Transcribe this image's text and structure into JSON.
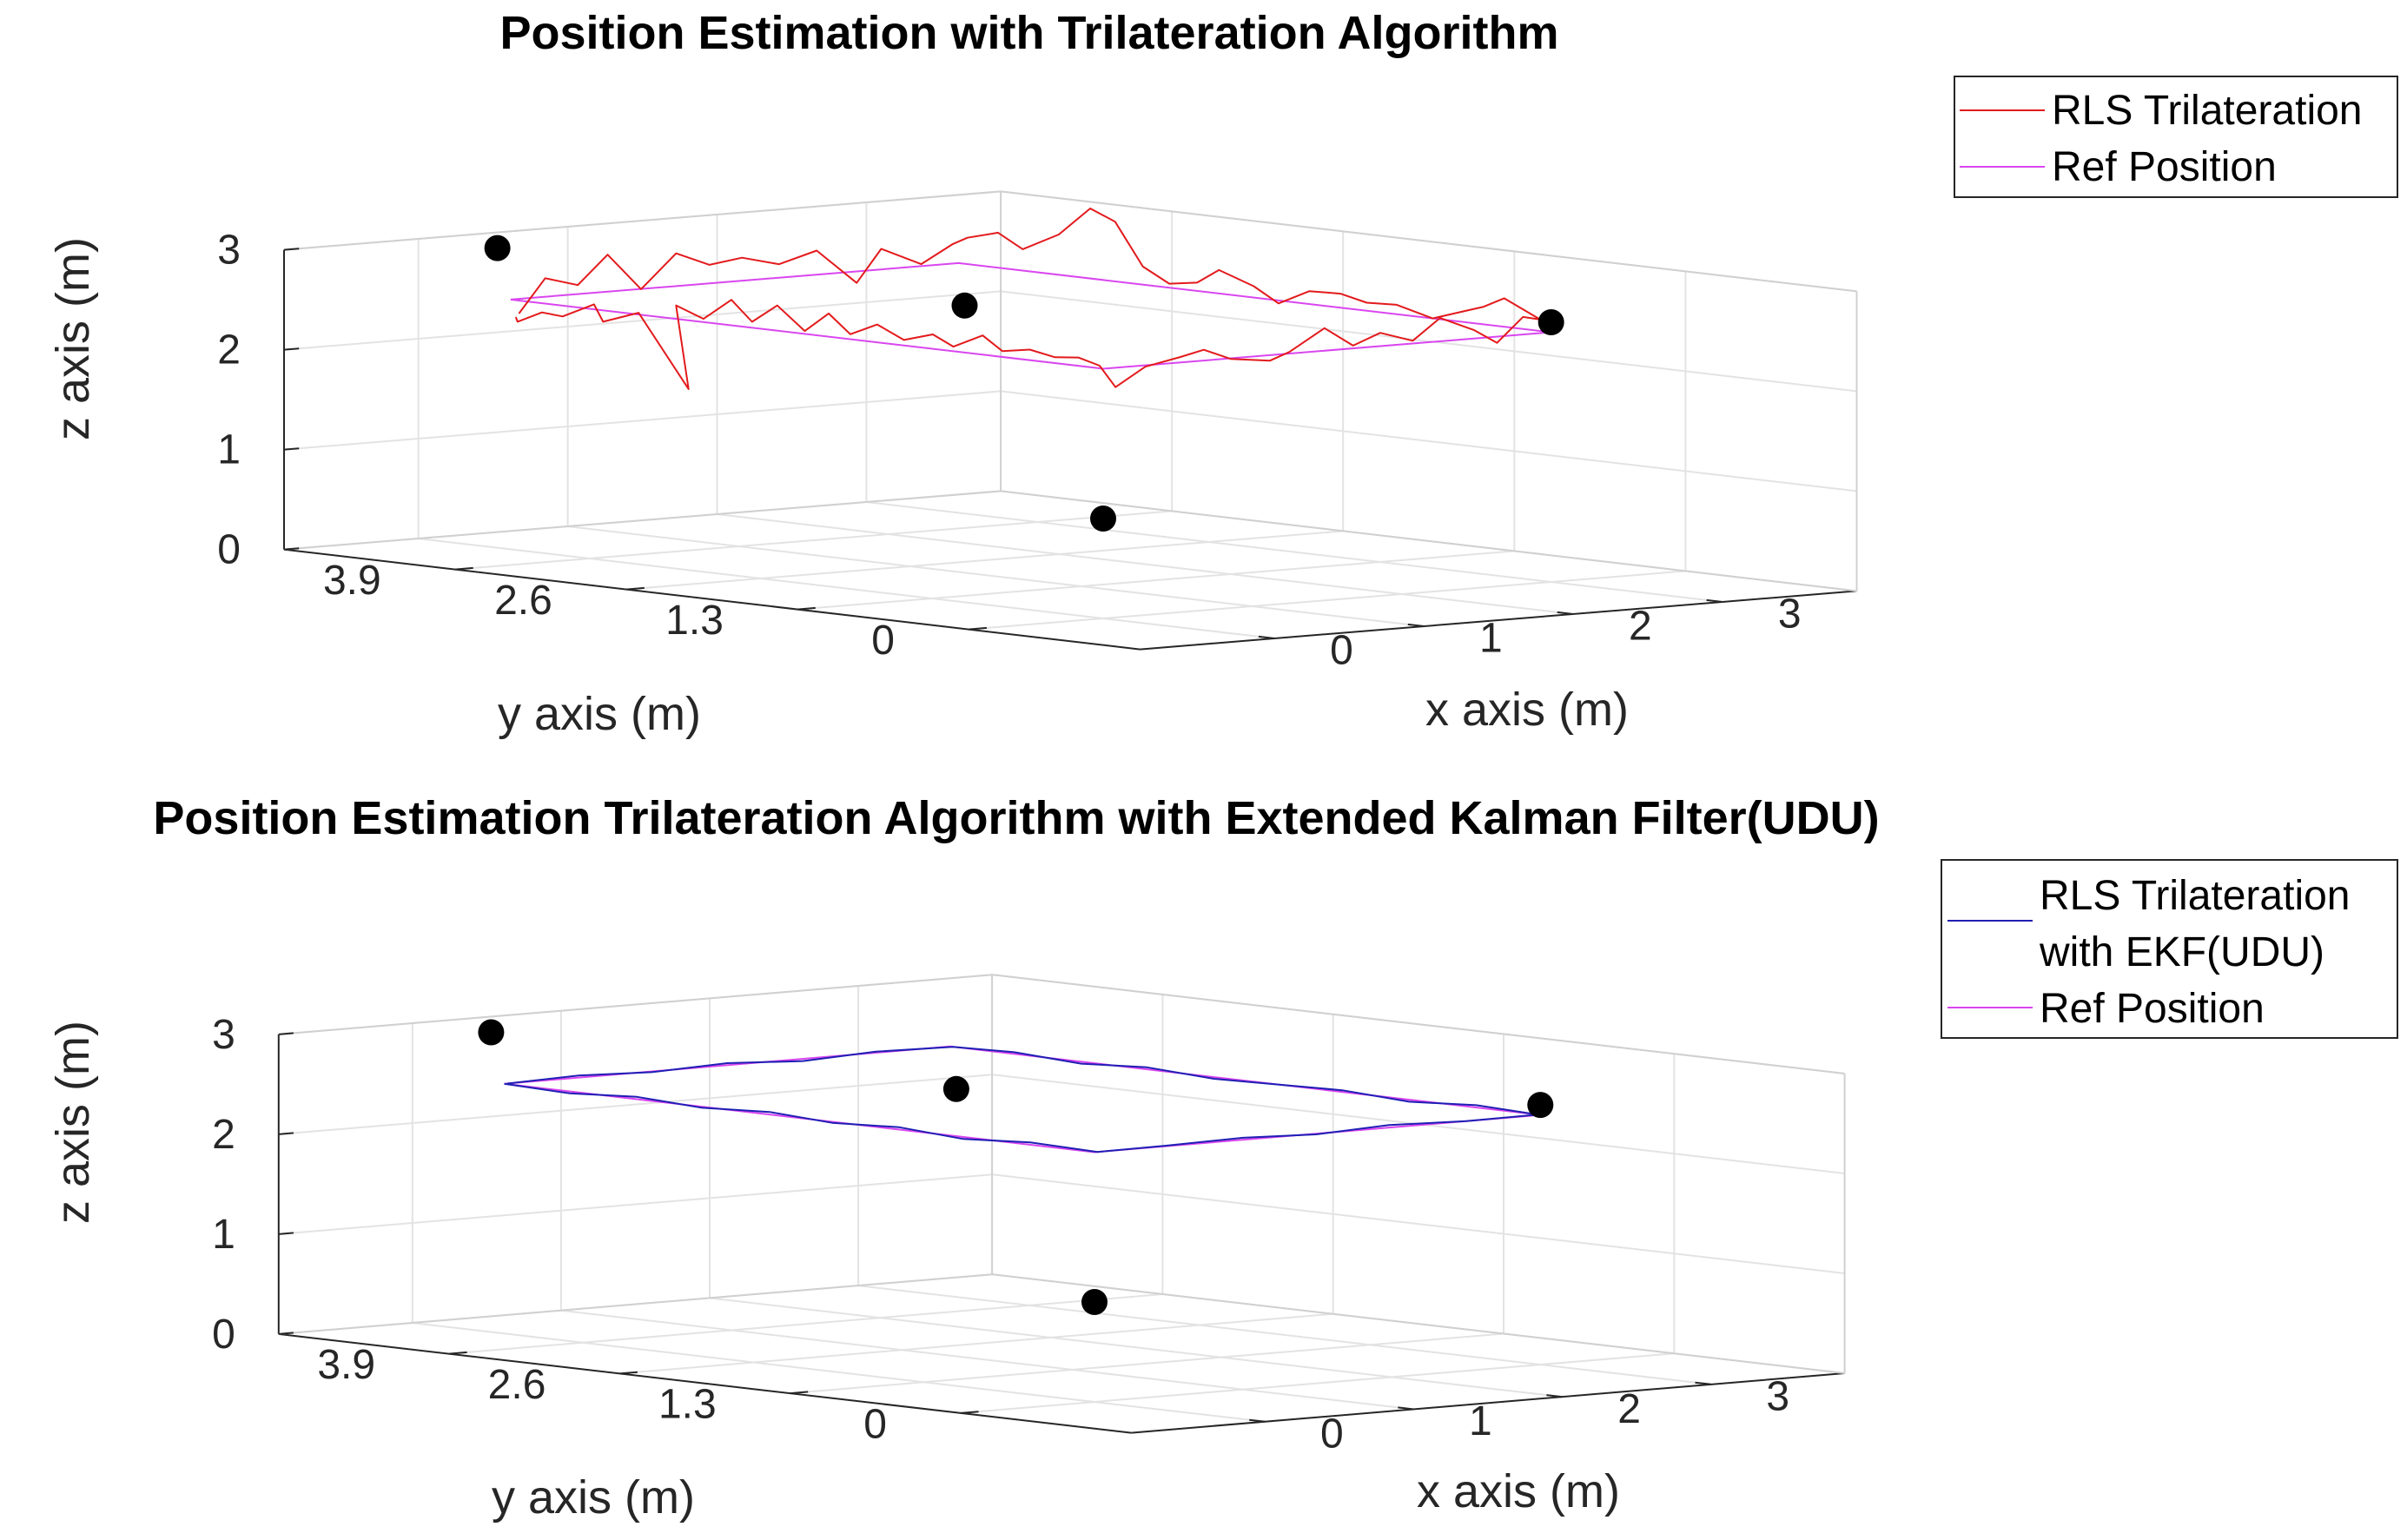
{
  "chart_data": [
    {
      "type": "line3d",
      "title": "Position Estimation with Trilateration Algorithm",
      "xlabel": "x axis (m)",
      "ylabel": "y axis (m)",
      "zlabel": "z axis (m)",
      "xlim": [
        -0.9,
        3.9
      ],
      "ylim": [
        -1.3,
        5.2
      ],
      "zlim": [
        0,
        3
      ],
      "xticks": [
        "0",
        "1",
        "2",
        "3"
      ],
      "yticks": [
        "3.9",
        "2.6",
        "1.3",
        "0"
      ],
      "zticks": [
        "0",
        "1",
        "2",
        "3"
      ],
      "grid": true,
      "legend_position": "top-right",
      "legend": [
        "RLS Trilateration",
        "Ref Position"
      ],
      "colors": {
        "estimate": "#e31a1c",
        "reference": "#d946ef",
        "anchor": "#000000"
      },
      "anchors": [
        [
          0.0,
          0.0,
          1.0
        ],
        [
          0.0,
          4.6,
          3.0
        ],
        [
          3.0,
          0.0,
          2.6
        ],
        [
          2.6,
          4.0,
          2.2
        ]
      ],
      "series": [
        {
          "name": "RLS Trilateration",
          "color": "#e31a1c",
          "points": [
            [
              0.07,
              4.54,
              2.31
            ],
            [
              0.02,
              4.47,
              2.28
            ],
            [
              0.06,
              4.33,
              2.39
            ],
            [
              0.04,
              4.15,
              2.38
            ],
            [
              0.1,
              3.98,
              2.52
            ],
            [
              0.02,
              3.82,
              2.38
            ],
            [
              0.09,
              3.63,
              2.49
            ],
            [
              0.31,
              3.5,
              1.72
            ],
            [
              0.05,
              3.3,
              2.62
            ],
            [
              0.04,
              3.08,
              2.52
            ],
            [
              0.05,
              2.88,
              2.74
            ],
            [
              0.03,
              2.7,
              2.55
            ],
            [
              0.04,
              2.52,
              2.74
            ],
            [
              0.03,
              2.3,
              2.52
            ],
            [
              0.04,
              2.13,
              2.72
            ],
            [
              0.0,
              1.92,
              2.55
            ],
            [
              0.03,
              1.75,
              2.67
            ],
            [
              0.05,
              1.57,
              2.54
            ],
            [
              0.05,
              1.35,
              2.63
            ],
            [
              0.02,
              1.16,
              2.54
            ],
            [
              0.04,
              0.96,
              2.68
            ],
            [
              0.03,
              0.8,
              2.55
            ],
            [
              0.02,
              0.58,
              2.6
            ],
            [
              0.03,
              0.4,
              2.55
            ],
            [
              0.01,
              0.2,
              2.58
            ],
            [
              0.02,
              0.05,
              2.52
            ],
            [
              0.1,
              0.02,
              2.3
            ],
            [
              0.3,
              0.02,
              2.48
            ],
            [
              0.5,
              -0.02,
              2.56
            ],
            [
              0.7,
              0.03,
              2.6
            ],
            [
              0.9,
              0.05,
              2.48
            ],
            [
              1.1,
              -0.02,
              2.45
            ],
            [
              1.3,
              0.06,
              2.5
            ],
            [
              1.5,
              0.02,
              2.72
            ],
            [
              1.7,
              0.03,
              2.52
            ],
            [
              1.9,
              0.05,
              2.62
            ],
            [
              2.1,
              0.03,
              2.52
            ],
            [
              2.3,
              0.05,
              2.72
            ],
            [
              2.5,
              0.02,
              2.58
            ],
            [
              2.7,
              0.07,
              2.42
            ],
            [
              2.9,
              0.1,
              2.65
            ],
            [
              2.98,
              0.06,
              2.62
            ],
            [
              2.95,
              0.3,
              2.8
            ],
            [
              2.99,
              0.5,
              2.68
            ],
            [
              3.02,
              0.69,
              2.6
            ],
            [
              3.0,
              0.9,
              2.5
            ],
            [
              2.98,
              1.15,
              2.6
            ],
            [
              3.0,
              1.4,
              2.58
            ],
            [
              3.0,
              1.6,
              2.64
            ],
            [
              3.03,
              1.87,
              2.62
            ],
            [
              3.0,
              2.07,
              2.47
            ],
            [
              3.01,
              2.27,
              2.61
            ],
            [
              2.98,
              2.5,
              2.74
            ],
            [
              3.01,
              2.7,
              2.58
            ],
            [
              3.0,
              2.9,
              2.54
            ],
            [
              3.0,
              3.1,
              2.68
            ],
            [
              2.99,
              3.3,
              3.1
            ],
            [
              3.0,
              3.5,
              3.2
            ],
            [
              3.01,
              3.75,
              2.9
            ],
            [
              2.98,
              3.99,
              2.72
            ],
            [
              3.0,
              4.2,
              2.85
            ],
            [
              2.98,
              4.41,
              2.77
            ],
            [
              2.98,
              4.52,
              2.69
            ],
            [
              2.75,
              4.5,
              2.52
            ],
            [
              2.5,
              4.52,
              2.7
            ],
            [
              2.3,
              4.48,
              2.39
            ],
            [
              2.05,
              4.5,
              2.74
            ],
            [
              1.78,
              4.48,
              2.64
            ],
            [
              1.55,
              4.5,
              2.73
            ],
            [
              1.35,
              4.52,
              2.68
            ],
            [
              1.1,
              4.49,
              2.83
            ],
            [
              0.9,
              4.53,
              2.49
            ],
            [
              0.65,
              4.5,
              2.87
            ],
            [
              0.45,
              4.5,
              2.59
            ],
            [
              0.25,
              4.52,
              2.68
            ],
            [
              0.1,
              4.55,
              2.34
            ]
          ]
        },
        {
          "name": "Ref Position",
          "color": "#d946ef",
          "points": [
            [
              0,
              4.5,
              2.5
            ],
            [
              0,
              0,
              2.5
            ],
            [
              3,
              0,
              2.5
            ],
            [
              3,
              4.5,
              2.5
            ],
            [
              0,
              4.5,
              2.5
            ]
          ]
        }
      ]
    },
    {
      "type": "line3d",
      "title": "Position Estimation Trilateration Algorithm with Extended Kalman Filter(UDU)",
      "xlabel": "x axis (m)",
      "ylabel": "y axis (m)",
      "zlabel": "z axis (m)",
      "xlim": [
        -0.9,
        3.9
      ],
      "ylim": [
        -1.3,
        5.2
      ],
      "zlim": [
        0,
        3
      ],
      "xticks": [
        "0",
        "1",
        "2",
        "3"
      ],
      "yticks": [
        "3.9",
        "2.6",
        "1.3",
        "0"
      ],
      "zticks": [
        "0",
        "1",
        "2",
        "3"
      ],
      "grid": true,
      "legend_position": "top-right",
      "legend": [
        "RLS Trilateration",
        "with EKF(UDU)",
        "Ref Position"
      ],
      "colors": {
        "estimate": "#1f1fb4",
        "reference": "#d946ef",
        "anchor": "#000000"
      },
      "anchors": [
        [
          0.0,
          0.0,
          1.0
        ],
        [
          0.0,
          4.6,
          3.0
        ],
        [
          3.0,
          0.0,
          2.6
        ],
        [
          2.6,
          4.0,
          2.2
        ]
      ],
      "series": [
        {
          "name": "RLS Trilateration with EKF(UDU)",
          "color": "#1f1fb4",
          "points": [
            [
              0.0,
              4.5,
              2.5
            ],
            [
              0.0,
              4.0,
              2.48
            ],
            [
              0.01,
              3.5,
              2.52
            ],
            [
              0.0,
              3.0,
              2.49
            ],
            [
              0.02,
              2.5,
              2.52
            ],
            [
              0.0,
              2.0,
              2.49
            ],
            [
              0.01,
              1.5,
              2.52
            ],
            [
              0.0,
              1.0,
              2.48
            ],
            [
              0.01,
              0.5,
              2.52
            ],
            [
              0.02,
              0.0,
              2.5
            ],
            [
              0.5,
              0.02,
              2.5
            ],
            [
              1.0,
              0.0,
              2.52
            ],
            [
              1.5,
              0.01,
              2.49
            ],
            [
              2.0,
              0.02,
              2.52
            ],
            [
              2.5,
              0.0,
              2.5
            ],
            [
              3.0,
              0.02,
              2.5
            ],
            [
              3.01,
              0.5,
              2.52
            ],
            [
              3.0,
              1.0,
              2.48
            ],
            [
              2.99,
              1.5,
              2.52
            ],
            [
              3.0,
              2.0,
              2.5
            ],
            [
              3.01,
              2.5,
              2.48
            ],
            [
              3.0,
              3.0,
              2.52
            ],
            [
              3.0,
              3.5,
              2.48
            ],
            [
              2.99,
              4.0,
              2.52
            ],
            [
              3.0,
              4.48,
              2.5
            ],
            [
              2.5,
              4.5,
              2.51
            ],
            [
              2.0,
              4.49,
              2.48
            ],
            [
              1.5,
              4.5,
              2.52
            ],
            [
              1.0,
              4.51,
              2.49
            ],
            [
              0.5,
              4.5,
              2.52
            ],
            [
              0.02,
              4.5,
              2.5
            ]
          ]
        },
        {
          "name": "Ref Position",
          "color": "#d946ef",
          "points": [
            [
              0,
              4.5,
              2.5
            ],
            [
              0,
              0,
              2.5
            ],
            [
              3,
              0,
              2.5
            ],
            [
              3,
              4.5,
              2.5
            ],
            [
              0,
              4.5,
              2.5
            ]
          ]
        }
      ]
    }
  ]
}
